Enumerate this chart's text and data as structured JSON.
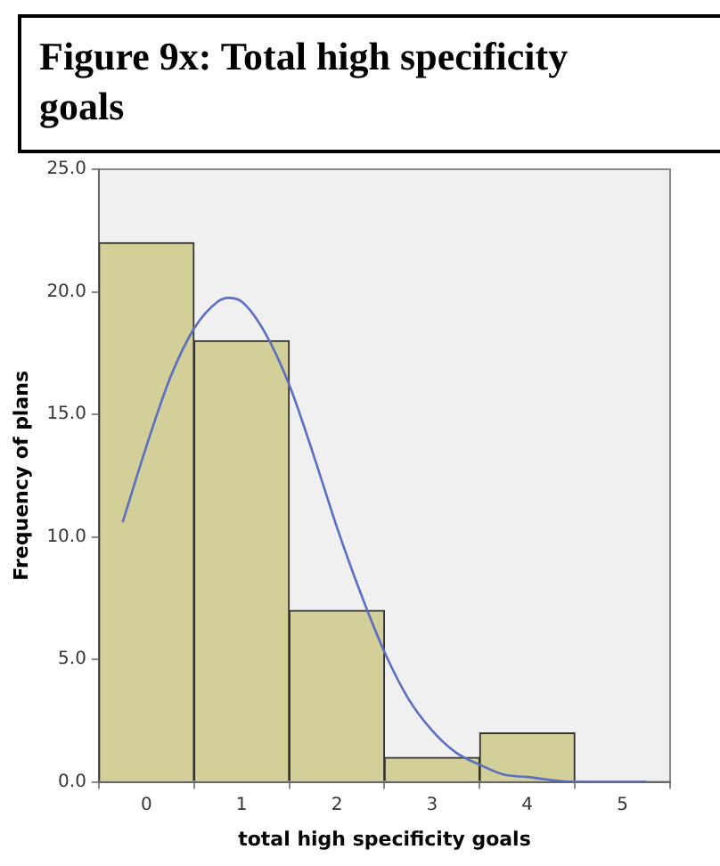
{
  "chart_data": {
    "type": "histogram",
    "title": "Figure 9x: Total high specificity goals",
    "xlabel": "total high specificity goals",
    "ylabel": "Frequency of plans",
    "bins": [
      -0.5,
      0.5,
      1.5,
      2.5,
      3.5,
      4.5
    ],
    "values": [
      22,
      18,
      7,
      1,
      2
    ],
    "color": "#d3cf98",
    "series": [
      {
        "type": "line",
        "color": "#5a6fbf",
        "x": [
          -0.25,
          0,
          0.25,
          0.5,
          0.75,
          0.86,
          1,
          1.25,
          1.5,
          1.75,
          2,
          2.25,
          2.5,
          2.75,
          3,
          3.25,
          3.5,
          3.75,
          4,
          4.5,
          5,
          5.25
        ],
        "values": [
          10.6,
          13.7,
          16.5,
          18.5,
          19.6,
          19.75,
          19.6,
          18.3,
          16.2,
          13.4,
          10.4,
          7.7,
          5.3,
          3.4,
          2.1,
          1.2,
          0.7,
          0.3,
          0.2,
          0,
          0,
          0
        ]
      }
    ],
    "xlim": [
      -0.5,
      5.5
    ],
    "xticks": [
      0,
      1,
      2,
      3,
      4,
      5
    ],
    "ylim": [
      0,
      25
    ],
    "yticks": [
      {
        "value": 0,
        "label": "0.0"
      },
      {
        "value": 5,
        "label": "5.0"
      },
      {
        "value": 10,
        "label": "10.0"
      },
      {
        "value": 15,
        "label": "15.0"
      },
      {
        "value": 20,
        "label": "20.0"
      },
      {
        "value": 25,
        "label": "25.0"
      }
    ],
    "grid": false,
    "legend": false,
    "marker": "none"
  }
}
